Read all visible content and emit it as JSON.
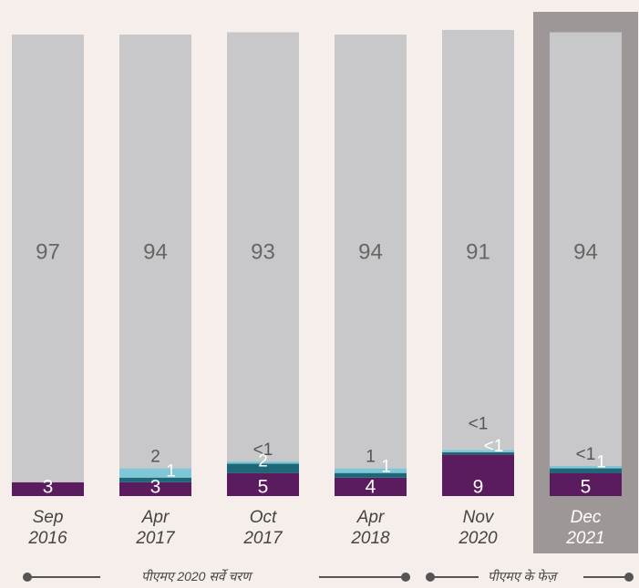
{
  "chart_data": {
    "type": "stacked_bar",
    "categories": [
      "Sep 2016",
      "Apr 2017",
      "Oct 2017",
      "Apr 2018",
      "Nov 2020",
      "Dec 2021"
    ],
    "series": [
      {
        "color": "#5b1b5f",
        "values": [
          3,
          3,
          5,
          4,
          9,
          5
        ]
      },
      {
        "color": "#1c6878",
        "values": [
          null,
          1,
          2,
          1,
          0.5,
          1
        ],
        "value_labels": [
          null,
          "1",
          "2",
          "1",
          "<1",
          "1"
        ]
      },
      {
        "color": "#7ec7d6",
        "values": [
          null,
          2,
          0.5,
          1,
          0.5,
          0.5
        ],
        "value_labels": [
          null,
          "2",
          "<1",
          "1",
          "<1",
          "<1"
        ]
      },
      {
        "color": "#c8c8ca",
        "values": [
          97,
          94,
          93,
          94,
          91,
          94
        ]
      }
    ],
    "ylim": [
      0,
      100
    ],
    "highlight_category": 5,
    "footer": {
      "left": "पीएमए 2020 सर्वे चरण",
      "right": "पीएमए के फेज़"
    }
  }
}
